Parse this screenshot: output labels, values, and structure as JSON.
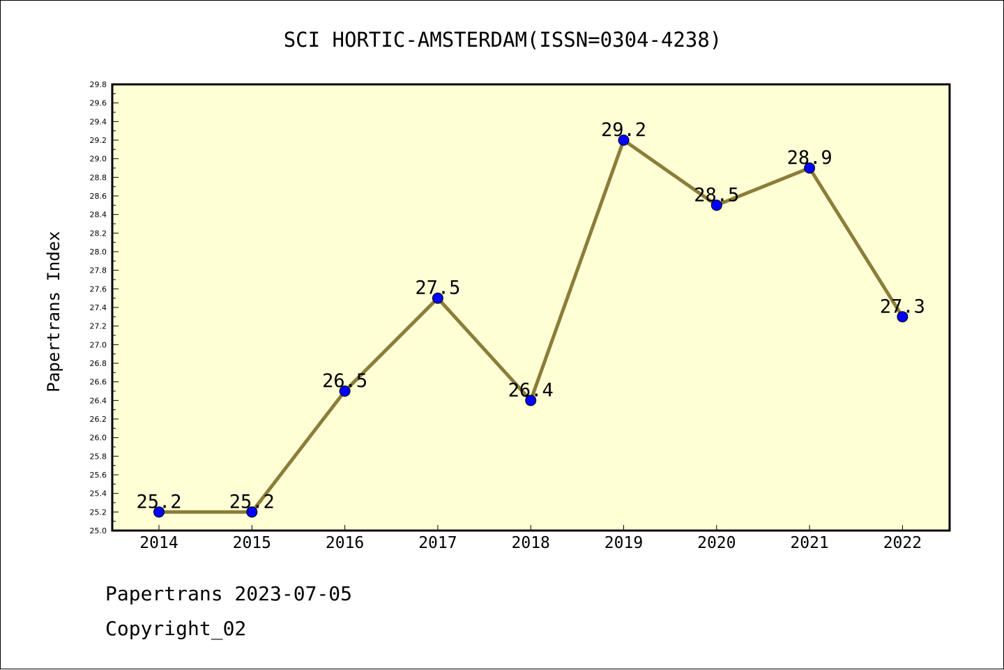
{
  "chart_data": {
    "type": "line",
    "title": "SCI HORTIC-AMSTERDAM(ISSN=0304-4238)",
    "xlabel": "",
    "ylabel": "Papertrans Index",
    "categories": [
      "2014",
      "2015",
      "2016",
      "2017",
      "2018",
      "2019",
      "2020",
      "2021",
      "2022"
    ],
    "series": [
      {
        "values": [
          25.2,
          25.2,
          26.5,
          27.5,
          26.4,
          29.2,
          28.5,
          28.9,
          27.3
        ],
        "labels": [
          "25.2",
          "25.2",
          "26.5",
          "27.5",
          "26.4",
          "29.2",
          "28.5",
          "28.9",
          "27.3"
        ]
      }
    ],
    "ylim": [
      25.0,
      29.8
    ],
    "yticks": [
      "25.0",
      "25.2",
      "25.4",
      "25.6",
      "25.8",
      "26.0",
      "26.2",
      "26.4",
      "26.6",
      "26.8",
      "27.0",
      "27.2",
      "27.4",
      "27.6",
      "27.8",
      "28.0",
      "28.2",
      "28.4",
      "28.6",
      "28.8",
      "29.0",
      "29.2",
      "29.4",
      "29.6",
      "29.8"
    ],
    "grid": false,
    "legend": "none",
    "colors": {
      "plot_background": "#ffffd5",
      "line": "#8b7d3a",
      "marker": "#0000ff",
      "axis": "#000000"
    }
  },
  "footer": {
    "line1": "Papertrans 2023-07-05",
    "line2": "Copyright_02"
  }
}
